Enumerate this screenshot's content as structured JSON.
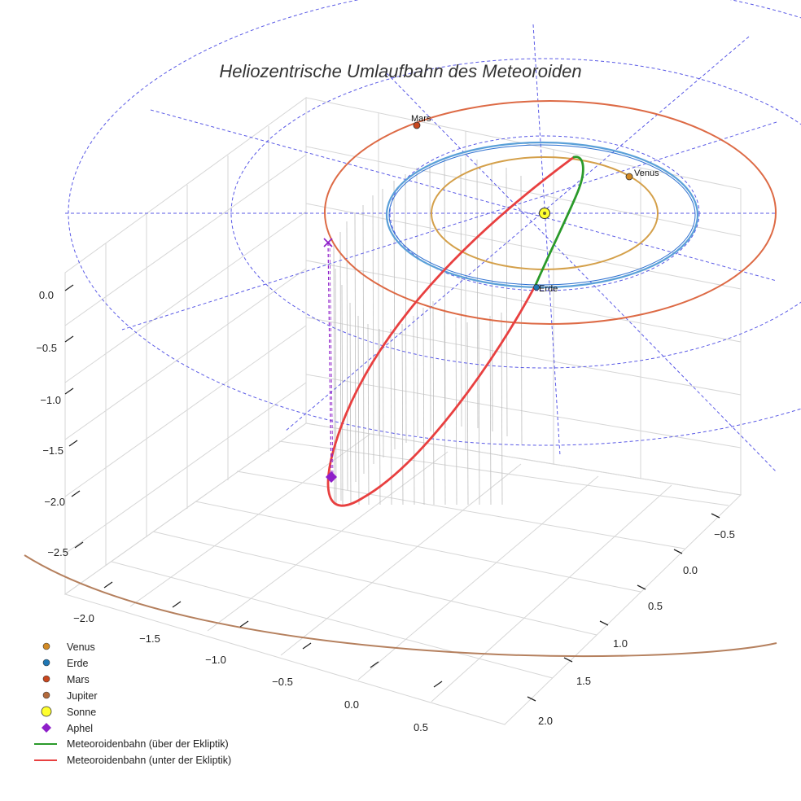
{
  "chart_data": {
    "type": "line",
    "projection": "3d",
    "title": "Heliozentrische Umlaufbahn des Meteoroiden",
    "axes": {
      "x": {
        "ticks": [
          -2.0,
          -1.5,
          -1.0,
          -0.5,
          0.0,
          0.5
        ],
        "tick_labels": [
          "−2.0",
          "−1.5",
          "−1.0",
          "−0.5",
          "0.0",
          "0.5"
        ]
      },
      "y": {
        "ticks": [
          -0.5,
          0.0,
          0.5,
          1.0,
          1.5,
          2.0
        ],
        "tick_labels": [
          "−0.5",
          "0.0",
          "0.5",
          "1.0",
          "1.5",
          "2.0"
        ]
      },
      "z": {
        "ticks": [
          0.0,
          -0.5,
          -1.0,
          -1.5,
          -2.0,
          -2.5
        ],
        "tick_labels": [
          "0.0",
          "−0.5",
          "−1.0",
          "−1.5",
          "−2.0",
          "−2.5"
        ]
      }
    },
    "orbits": [
      {
        "name": "Venus",
        "radius_au": 0.72,
        "color": "#d4a04a"
      },
      {
        "name": "Erde",
        "radius_au": 1.0,
        "color": "#3a8fd0"
      },
      {
        "name": "Mars",
        "radius_au": 1.52,
        "color": "#dd6a45"
      },
      {
        "name": "Jupiter",
        "radius_au": 5.2,
        "color": "#b5805e"
      }
    ],
    "planet_labels": {
      "venus": "Venus",
      "erde": "Erde",
      "mars": "Mars"
    },
    "meteoroid": {
      "series": [
        {
          "name": "Meteoroidenbahn (über der Ekliptik)",
          "color": "#2a9a2a"
        },
        {
          "name": "Meteoroidenbahn (unter der Ekliptik)",
          "color": "#e84040"
        }
      ],
      "aphel_marker_color": "#8e1fc9"
    },
    "legend": {
      "position": "bottom-left",
      "entries": [
        {
          "label": "Venus",
          "marker": "dot",
          "color": "#d28a24"
        },
        {
          "label": "Erde",
          "marker": "dot",
          "color": "#1f77b4"
        },
        {
          "label": "Mars",
          "marker": "dot",
          "color": "#c9471e"
        },
        {
          "label": "Jupiter",
          "marker": "dot",
          "color": "#b36a3c"
        },
        {
          "label": "Sonne",
          "marker": "sun",
          "color": "#ffff2e"
        },
        {
          "label": "Aphel",
          "marker": "diamond",
          "color": "#8e1fc9"
        },
        {
          "label": "Meteoroidenbahn (über der Ekliptik)",
          "marker": "line",
          "color": "#2a9a2a"
        },
        {
          "label": "Meteoroidenbahn (unter der Ekliptik)",
          "marker": "line",
          "color": "#e84040"
        }
      ]
    }
  }
}
